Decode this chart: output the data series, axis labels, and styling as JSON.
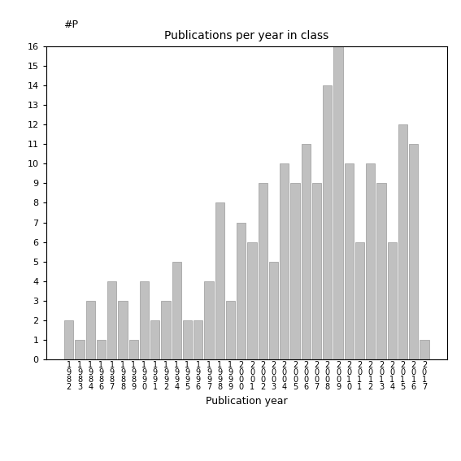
{
  "title": "Publications per year in class",
  "xlabel": "Publication year",
  "ylabel_label": "#P",
  "bar_color": "#c0c0c0",
  "bar_edge_color": "#999999",
  "background_color": "#ffffff",
  "ylim": [
    0,
    16
  ],
  "yticks": [
    0,
    1,
    2,
    3,
    4,
    5,
    6,
    7,
    8,
    9,
    10,
    11,
    12,
    13,
    14,
    15,
    16
  ],
  "categories": [
    "1\n9\n8\n2",
    "1\n9\n8\n3",
    "1\n9\n8\n4",
    "1\n9\n8\n6",
    "1\n9\n8\n7",
    "1\n9\n8\n8",
    "1\n9\n8\n9",
    "1\n9\n9\n0",
    "1\n9\n9\n1",
    "1\n9\n9\n2",
    "1\n9\n9\n4",
    "1\n9\n9\n5",
    "1\n9\n9\n6",
    "1\n9\n9\n7",
    "1\n9\n9\n8",
    "1\n9\n9\n9",
    "2\n0\n0\n0",
    "2\n0\n0\n1",
    "2\n0\n0\n2",
    "2\n0\n0\n3",
    "2\n0\n0\n4",
    "2\n0\n0\n5",
    "2\n0\n0\n6",
    "2\n0\n0\n7",
    "2\n0\n0\n8",
    "2\n0\n0\n9",
    "2\n0\n1\n0",
    "2\n0\n1\n1",
    "2\n0\n1\n2",
    "2\n0\n1\n3",
    "2\n0\n1\n4",
    "2\n0\n1\n5",
    "2\n0\n1\n6",
    "2\n0\n1\n7"
  ],
  "values": [
    2,
    1,
    3,
    1,
    4,
    3,
    1,
    4,
    2,
    3,
    5,
    2,
    2,
    4,
    8,
    3,
    7,
    6,
    9,
    5,
    10,
    9,
    11,
    9,
    14,
    16,
    10,
    6,
    10,
    9,
    6,
    12,
    11,
    1
  ]
}
